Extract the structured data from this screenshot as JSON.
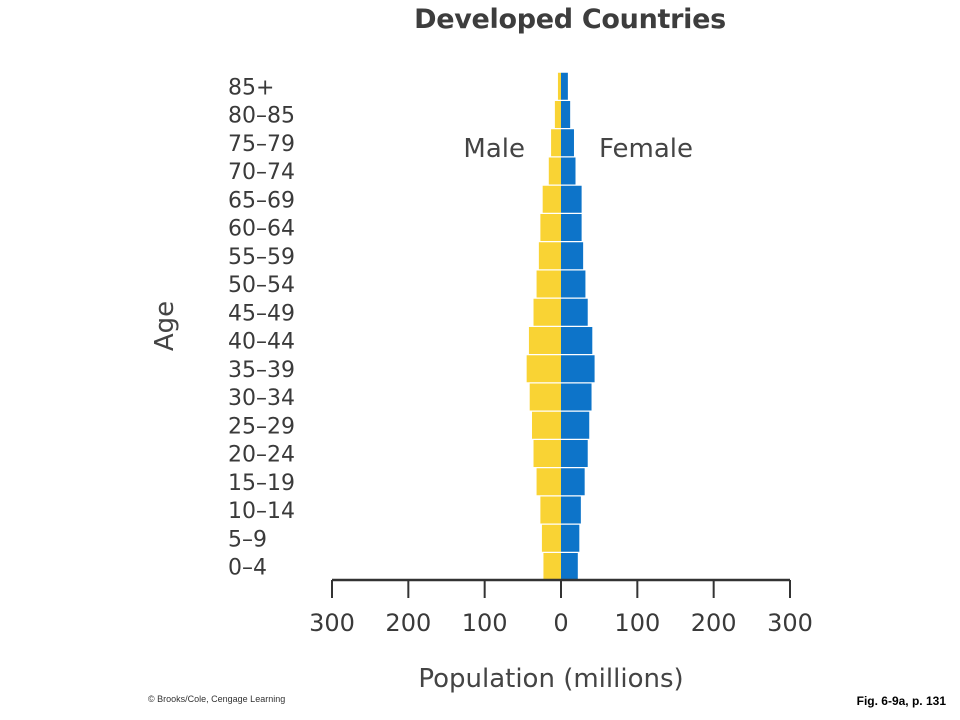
{
  "footer": {
    "credit": "© Brooks/Cole, Cengage Learning",
    "figure_ref": "Fig. 6-9a, p. 131"
  },
  "colors": {
    "male": "#f9d334",
    "female": "#0d74c9",
    "axis": "#333333",
    "text": "#3a3a3a"
  },
  "chart_data": {
    "type": "bar",
    "orientation": "horizontal",
    "subtype": "population-pyramid",
    "title": "Developed Countries",
    "xlabel": "Population (millions)",
    "ylabel": "Age",
    "xlim": [
      -300,
      300
    ],
    "xticks": [
      -300,
      -200,
      -100,
      0,
      100,
      200,
      300
    ],
    "xtick_labels": [
      "300",
      "200",
      "100",
      "0",
      "100",
      "200",
      "300"
    ],
    "grid": false,
    "categories": [
      "0–4",
      "5–9",
      "10–14",
      "15–19",
      "20–24",
      "25–29",
      "30–34",
      "35–39",
      "40–44",
      "45–49",
      "50–54",
      "55–59",
      "60–64",
      "65–69",
      "70–74",
      "75–79",
      "80–85",
      "85+"
    ],
    "series": [
      {
        "name": "Male",
        "side": "left",
        "values": [
          23,
          25,
          27,
          32,
          36,
          38,
          41,
          45,
          42,
          36,
          32,
          29,
          27,
          24,
          16,
          13,
          8,
          4
        ]
      },
      {
        "name": "Female",
        "side": "right",
        "values": [
          22,
          24,
          26,
          31,
          35,
          37,
          40,
          44,
          41,
          35,
          32,
          29,
          27,
          27,
          19,
          17,
          12,
          9
        ]
      }
    ]
  }
}
